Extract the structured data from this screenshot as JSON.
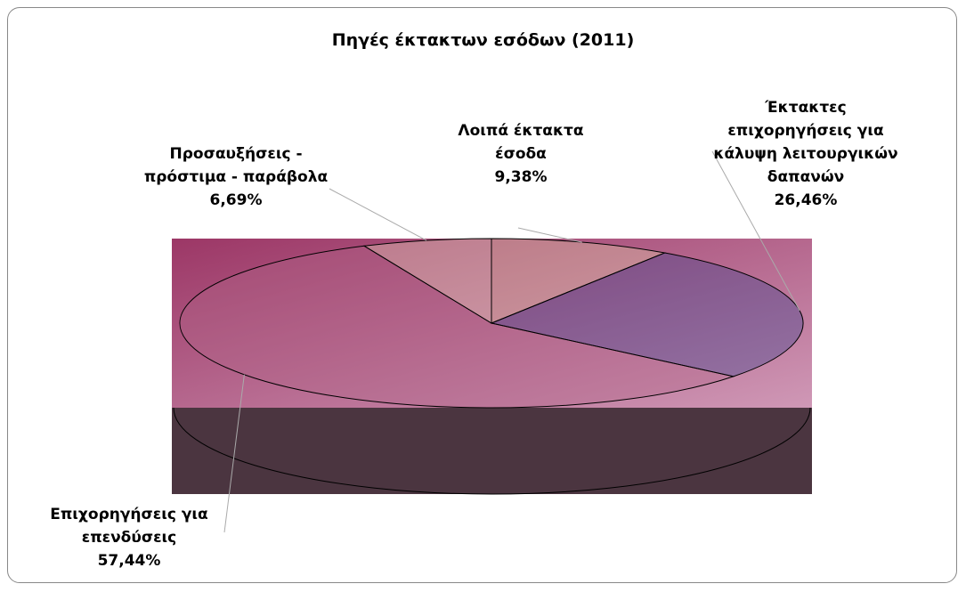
{
  "chart_data": {
    "type": "pie",
    "title": "Πηγές έκτακτων εσόδων (2011)",
    "categories": [
      "Λοιπά έκτακτα έσοδα",
      "Έκτακτες επιχορηγήσεις για κάλυψη λειτουργικών δαπανών",
      "Επιχορηγήσεις για επενδύσεις",
      "Προσαυξήσεις - πρόστιμα - παράβολα"
    ],
    "values": [
      9.38,
      26.46,
      57.44,
      6.69
    ],
    "value_labels": [
      "9,38%",
      "26,46%",
      "57,44%",
      "6,69%"
    ],
    "colors": [
      "#e6d3a8",
      "#2e3c8c",
      "#b3668a",
      "#efe3c4"
    ]
  }
}
